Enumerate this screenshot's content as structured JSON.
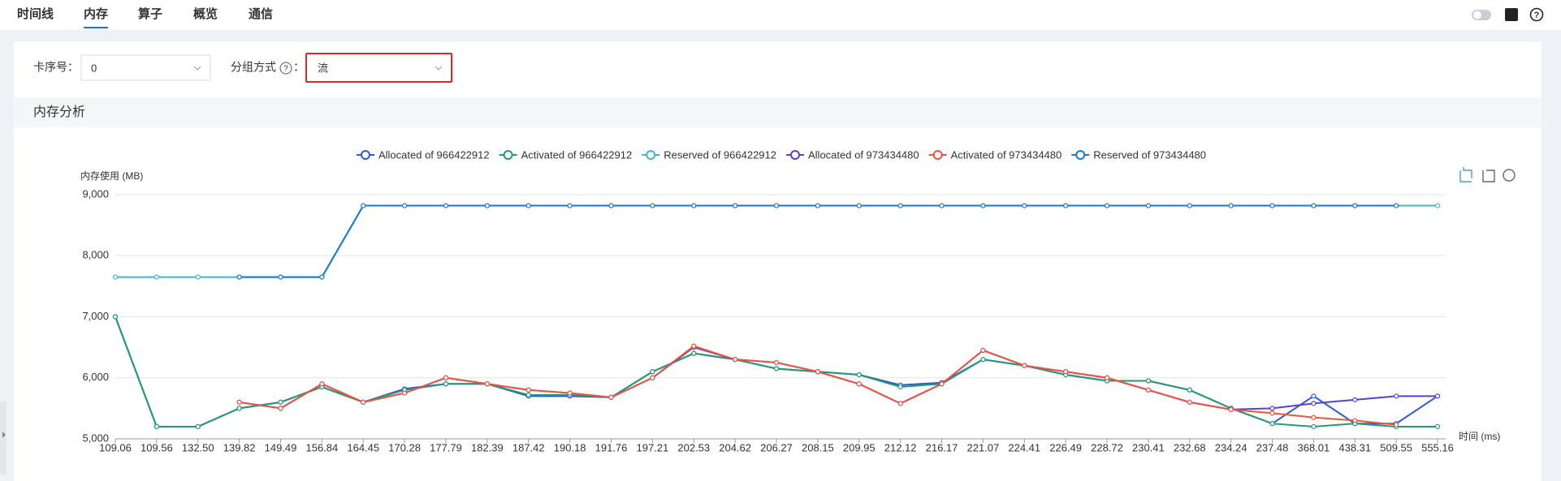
{
  "tabs": [
    "时间线",
    "内存",
    "算子",
    "概览",
    "通信"
  ],
  "active_tab_index": 1,
  "filters": [
    {
      "label": "卡序号：",
      "value": "0"
    },
    {
      "label": "分组方式",
      "separator": "：",
      "value": "流"
    }
  ],
  "section_title": "内存分析",
  "chart_data": {
    "type": "line",
    "y_axis_label": "内存使用 (MB)",
    "x_axis_label": "时间 (ms)",
    "legend": "top",
    "grid": true,
    "categories": [
      "109.06",
      "109.56",
      "132.50",
      "139.82",
      "149.49",
      "156.84",
      "164.45",
      "170.28",
      "177.79",
      "182.39",
      "187.42",
      "190.18",
      "191.76",
      "197.21",
      "202.53",
      "204.62",
      "206.27",
      "208.15",
      "209.95",
      "212.12",
      "216.17",
      "221.07",
      "224.41",
      "226.49",
      "228.72",
      "230.41",
      "232.68",
      "234.24",
      "237.48",
      "368.01",
      "438.31",
      "509.55",
      "555.16"
    ],
    "ylim": [
      5000,
      9000
    ],
    "yticks": [
      {
        "value": 5000,
        "label": "5,000"
      },
      {
        "value": 6000,
        "label": "6,000"
      },
      {
        "value": 7000,
        "label": "7,000"
      },
      {
        "value": 8000,
        "label": "8,000"
      },
      {
        "value": 9000,
        "label": "9,000"
      }
    ],
    "series": [
      {
        "name": "Allocated of 966422912",
        "color": "#2a5bd7",
        "values": [
          7000,
          5200,
          5200,
          5500,
          5600,
          5850,
          5600,
          5820,
          5900,
          5900,
          5700,
          5700,
          5680,
          6100,
          6400,
          6300,
          6150,
          6100,
          6050,
          5880,
          5920,
          6300,
          6200,
          6050,
          5950,
          5950,
          5800,
          5500,
          5250,
          5700,
          5250,
          5250,
          5700
        ]
      },
      {
        "name": "Activated of 966422912",
        "color": "#249a70",
        "values": [
          7000,
          5200,
          5200,
          5500,
          5600,
          5850,
          5600,
          5800,
          5900,
          5900,
          5720,
          5720,
          5680,
          6100,
          6400,
          6300,
          6150,
          6100,
          6050,
          5850,
          5900,
          6300,
          6200,
          6050,
          5950,
          5950,
          5800,
          5500,
          5250,
          5200,
          5250,
          5200,
          5200
        ]
      },
      {
        "name": "Reserved of 966422912",
        "color": "#3db8c4",
        "values": [
          7650,
          7650,
          7650,
          7650,
          7650,
          7650,
          8820,
          8820,
          8820,
          8820,
          8820,
          8820,
          8820,
          8820,
          8820,
          8820,
          8820,
          8820,
          8820,
          8820,
          8820,
          8820,
          8820,
          8820,
          8820,
          8820,
          8820,
          8820,
          8820,
          8820,
          8820,
          8820,
          8820
        ]
      },
      {
        "name": "Allocated of 973434480",
        "color": "#5b3fd6",
        "values": [
          null,
          null,
          null,
          5600,
          5500,
          5900,
          5600,
          5750,
          6000,
          5900,
          5800,
          5750,
          5680,
          6000,
          6500,
          6300,
          6250,
          6100,
          5900,
          5580,
          5900,
          6450,
          6200,
          6100,
          6000,
          5800,
          5600,
          5480,
          5500,
          5580,
          5640,
          5700,
          5700
        ]
      },
      {
        "name": "Activated of 973434480",
        "color": "#f0533f",
        "values": [
          null,
          null,
          null,
          5600,
          5500,
          5900,
          5600,
          5750,
          6000,
          5900,
          5800,
          5750,
          5680,
          6000,
          6520,
          6300,
          6250,
          6100,
          5900,
          5580,
          5900,
          6450,
          6200,
          6100,
          6000,
          5800,
          5600,
          5480,
          5420,
          5350,
          5300,
          5230,
          null
        ]
      },
      {
        "name": "Reserved of 973434480",
        "color": "#1677e0",
        "values": [
          null,
          null,
          null,
          7650,
          7650,
          7650,
          8820,
          8820,
          8820,
          8820,
          8820,
          8820,
          8820,
          8820,
          8820,
          8820,
          8820,
          8820,
          8820,
          8820,
          8820,
          8820,
          8820,
          8820,
          8820,
          8820,
          8820,
          8820,
          8820,
          8820,
          8820,
          8820,
          null
        ]
      }
    ]
  }
}
